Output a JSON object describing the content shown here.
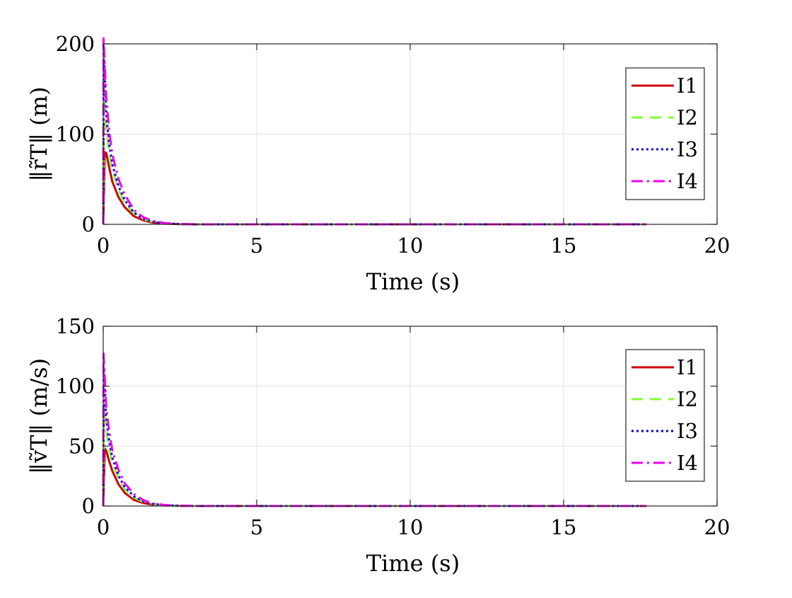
{
  "chart_data": [
    {
      "type": "line",
      "title": "",
      "xlabel": "Time (s)",
      "ylabel": "‖r̃T‖ (m)",
      "xlim": [
        0,
        20
      ],
      "ylim": [
        0,
        200
      ],
      "xticks": [
        "0",
        "5",
        "10",
        "15",
        "20"
      ],
      "yticks": [
        "0",
        "100",
        "200"
      ],
      "grid": true,
      "legend_position": "right",
      "series": [
        {
          "name": "I1",
          "color": "#cc0000",
          "dash": "solid",
          "x": [
            0,
            0.05,
            0.1,
            0.2,
            0.3,
            0.5,
            0.7,
            1.0,
            1.3,
            1.6,
            2.0,
            2.5,
            3.0,
            5.0,
            10.0,
            15.0,
            17.7
          ],
          "y": [
            0,
            80,
            79,
            62,
            47,
            30,
            19,
            9,
            4.5,
            2,
            0.8,
            0.2,
            0,
            0,
            0,
            0,
            0
          ]
        },
        {
          "name": "I2",
          "color": "#80ff33",
          "dash": "dashed",
          "x": [
            0,
            0.03,
            0.1,
            0.2,
            0.3,
            0.5,
            0.7,
            1.0,
            1.3,
            1.6,
            2.0,
            2.5,
            3.0,
            5.0,
            10.0,
            15.0,
            17.7
          ],
          "y": [
            0,
            150,
            105,
            78,
            60,
            38,
            24,
            12,
            6,
            3,
            1,
            0.3,
            0,
            0,
            0,
            0,
            0
          ]
        },
        {
          "name": "I3",
          "color": "#0000dd",
          "dash": "dotted",
          "x": [
            0,
            0.02,
            0.1,
            0.2,
            0.3,
            0.5,
            0.7,
            1.0,
            1.3,
            1.6,
            2.0,
            2.5,
            3.0,
            5.0,
            10.0,
            15.0,
            17.7
          ],
          "y": [
            0,
            195,
            120,
            88,
            66,
            42,
            27,
            13,
            6.5,
            3,
            1,
            0.3,
            0,
            0,
            0,
            0,
            0
          ]
        },
        {
          "name": "I4",
          "color": "#ee00ee",
          "dash": "dashdot",
          "x": [
            0,
            0.01,
            0.1,
            0.2,
            0.3,
            0.5,
            0.7,
            1.0,
            1.3,
            1.6,
            2.0,
            2.5,
            3.0,
            5.0,
            10.0,
            15.0,
            17.7
          ],
          "y": [
            0,
            208,
            140,
            102,
            77,
            50,
            33,
            16,
            8,
            4,
            1.5,
            0.4,
            0,
            0,
            0,
            0,
            0
          ]
        }
      ]
    },
    {
      "type": "line",
      "title": "",
      "xlabel": "Time (s)",
      "ylabel": "‖ṽT‖ (m/s)",
      "xlim": [
        0,
        20
      ],
      "ylim": [
        0,
        150
      ],
      "xticks": [
        "0",
        "5",
        "10",
        "15",
        "20"
      ],
      "yticks": [
        "0",
        "50",
        "100",
        "150"
      ],
      "grid": true,
      "legend_position": "right",
      "series": [
        {
          "name": "I1",
          "color": "#cc0000",
          "dash": "solid",
          "x": [
            0,
            0.05,
            0.1,
            0.2,
            0.3,
            0.5,
            0.7,
            1.0,
            1.3,
            1.6,
            2.0,
            2.5,
            3.0,
            5.0,
            10.0,
            15.0,
            17.7
          ],
          "y": [
            0,
            48,
            46,
            37,
            29,
            18,
            11,
            5,
            2.5,
            1.2,
            0.4,
            0.1,
            0,
            0,
            0,
            0,
            0
          ]
        },
        {
          "name": "I2",
          "color": "#80ff33",
          "dash": "dashed",
          "x": [
            0,
            0.03,
            0.1,
            0.2,
            0.3,
            0.5,
            0.7,
            1.0,
            1.3,
            1.6,
            2.0,
            2.5,
            3.0,
            5.0,
            10.0,
            15.0,
            17.7
          ],
          "y": [
            0,
            85,
            62,
            47,
            36,
            23,
            14,
            7,
            3.5,
            1.6,
            0.6,
            0.2,
            0,
            0,
            0,
            0,
            0
          ]
        },
        {
          "name": "I3",
          "color": "#0000dd",
          "dash": "dotted",
          "x": [
            0,
            0.02,
            0.1,
            0.2,
            0.3,
            0.5,
            0.7,
            1.0,
            1.3,
            1.6,
            2.0,
            2.5,
            3.0,
            5.0,
            10.0,
            15.0,
            17.7
          ],
          "y": [
            0,
            115,
            72,
            53,
            40,
            25,
            16,
            8,
            4,
            1.8,
            0.7,
            0.2,
            0,
            0,
            0,
            0,
            0
          ]
        },
        {
          "name": "I4",
          "color": "#ee00ee",
          "dash": "dashdot",
          "x": [
            0,
            0.01,
            0.1,
            0.2,
            0.3,
            0.5,
            0.7,
            1.0,
            1.3,
            1.6,
            2.0,
            2.5,
            3.0,
            5.0,
            10.0,
            15.0,
            17.7
          ],
          "y": [
            0,
            128,
            82,
            61,
            46,
            30,
            19,
            10,
            5,
            2.2,
            0.9,
            0.3,
            0,
            0,
            0,
            0,
            0
          ]
        }
      ]
    }
  ]
}
